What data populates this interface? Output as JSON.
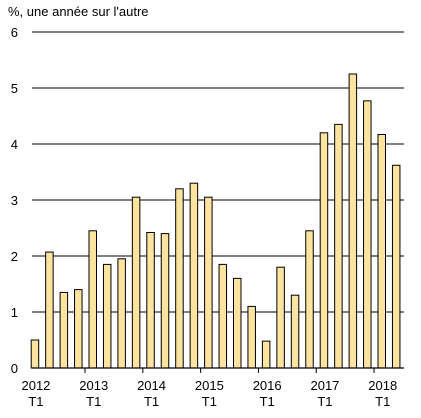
{
  "chart_data": {
    "type": "bar",
    "ylabel": "%, une année sur l'autre",
    "ylim": [
      0,
      6
    ],
    "yticks": [
      0,
      1,
      2,
      3,
      4,
      5,
      6
    ],
    "grid": true,
    "bar_color": "#fde3a0",
    "bar_stroke": "#000000",
    "categories": [
      "2012 T1",
      "2012 T2",
      "2012 T3",
      "2012 T4",
      "2013 T1",
      "2013 T2",
      "2013 T3",
      "2013 T4",
      "2014 T1",
      "2014 T2",
      "2014 T3",
      "2014 T4",
      "2015 T1",
      "2015 T2",
      "2015 T3",
      "2015 T4",
      "2016 T1",
      "2016 T2",
      "2016 T3",
      "2016 T4",
      "2017 T1",
      "2017 T2",
      "2017 T3",
      "2017 T4",
      "2018 T1",
      "2018 T2"
    ],
    "values": [
      0.5,
      2.07,
      1.35,
      1.4,
      2.45,
      1.85,
      1.95,
      3.05,
      2.42,
      2.4,
      3.2,
      3.3,
      3.05,
      1.85,
      1.6,
      1.1,
      0.48,
      1.8,
      1.3,
      2.45,
      4.2,
      4.35,
      5.25,
      4.77,
      4.17,
      3.62
    ],
    "xtick_labels": [
      {
        "year": "2012",
        "quarter": "T1",
        "index": 0
      },
      {
        "year": "2013",
        "quarter": "T1",
        "index": 4
      },
      {
        "year": "2014",
        "quarter": "T1",
        "index": 8
      },
      {
        "year": "2015",
        "quarter": "T1",
        "index": 12
      },
      {
        "year": "2016",
        "quarter": "T1",
        "index": 16
      },
      {
        "year": "2017",
        "quarter": "T1",
        "index": 20
      },
      {
        "year": "2018",
        "quarter": "T1",
        "index": 24
      }
    ]
  }
}
